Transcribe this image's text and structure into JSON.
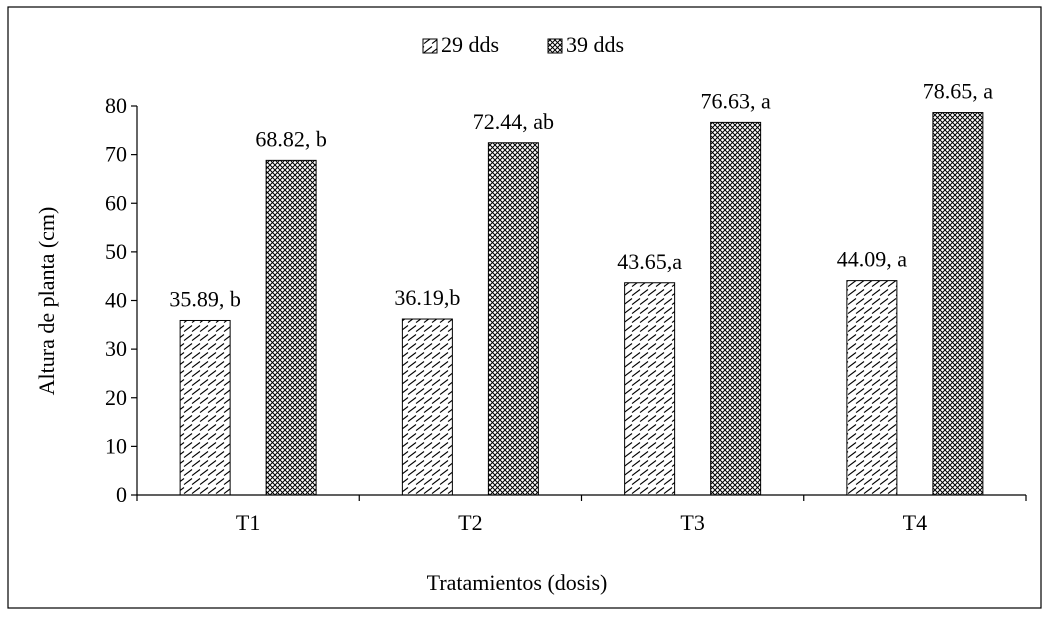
{
  "chart_data": {
    "type": "bar",
    "title": "",
    "xlabel": "Tratamientos (dosis)",
    "ylabel": "Altura de planta (cm)",
    "ylim": [
      0,
      80
    ],
    "yticks": [
      0,
      10,
      20,
      30,
      40,
      50,
      60,
      70,
      80
    ],
    "categories": [
      "T1",
      "T2",
      "T3",
      "T4"
    ],
    "series": [
      {
        "name": "29 dds",
        "pattern": "diagonal-hatch",
        "values": [
          35.89,
          36.19,
          43.65,
          44.09
        ],
        "labels": [
          "35.89, b",
          "36.19,b",
          "43.65,a",
          "44.09, a"
        ]
      },
      {
        "name": "39 dds",
        "pattern": "crosshatch",
        "values": [
          68.82,
          72.44,
          76.63,
          78.65
        ],
        "labels": [
          "68.82, b",
          "72.44, ab",
          "76.63, a",
          "78.65, a"
        ]
      }
    ],
    "legend_position": "top-center",
    "grid": false,
    "colors": {
      "bar_fill": "#ffffff",
      "bar_pattern": "#000000",
      "axis": "#000000",
      "frame": "#000000"
    }
  }
}
